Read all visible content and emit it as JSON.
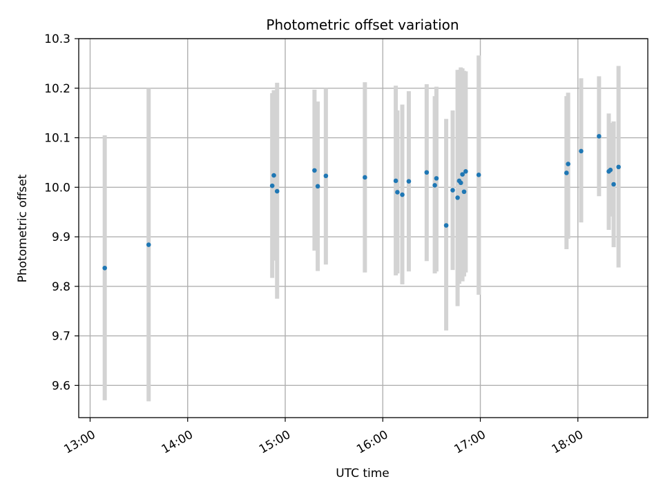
{
  "chart_data": {
    "type": "scatter",
    "title": "Photometric offset variation",
    "xlabel": "UTC time",
    "ylabel": "Photometric offset",
    "xlim": [
      "12:53",
      "18:43"
    ],
    "ylim": [
      9.535,
      10.3
    ],
    "x_ticks": [
      "13:00",
      "14:00",
      "15:00",
      "16:00",
      "17:00",
      "18:00"
    ],
    "y_ticks": [
      9.6,
      9.7,
      9.8,
      9.9,
      10.0,
      10.1,
      10.2,
      10.3
    ],
    "y_tick_labels": [
      "9.6",
      "9.7",
      "9.8",
      "9.9",
      "10.0",
      "10.1",
      "10.2",
      "10.3"
    ],
    "grid": true,
    "marker_color": "#1f77b4",
    "errorbar_color": "#d3d3d3",
    "points": [
      {
        "x": "13:09",
        "y": 9.837,
        "low": 9.57,
        "high": 10.105
      },
      {
        "x": "13:36",
        "y": 9.884,
        "low": 9.568,
        "high": 10.2
      },
      {
        "x": "14:52",
        "y": 10.003,
        "low": 9.817,
        "high": 10.19
      },
      {
        "x": "14:53",
        "y": 10.024,
        "low": 9.852,
        "high": 10.196
      },
      {
        "x": "14:55",
        "y": 9.992,
        "low": 9.775,
        "high": 10.211
      },
      {
        "x": "15:18",
        "y": 10.034,
        "low": 9.872,
        "high": 10.197
      },
      {
        "x": "15:20",
        "y": 10.002,
        "low": 9.831,
        "high": 10.173
      },
      {
        "x": "15:25",
        "y": 10.023,
        "low": 9.844,
        "high": 10.2
      },
      {
        "x": "15:49",
        "y": 10.02,
        "low": 9.828,
        "high": 10.212
      },
      {
        "x": "16:08",
        "y": 10.013,
        "low": 9.822,
        "high": 10.205
      },
      {
        "x": "16:09",
        "y": 9.99,
        "low": 9.826,
        "high": 10.155
      },
      {
        "x": "16:12",
        "y": 9.985,
        "low": 9.804,
        "high": 10.167
      },
      {
        "x": "16:16",
        "y": 10.012,
        "low": 9.83,
        "high": 10.194
      },
      {
        "x": "16:27",
        "y": 10.03,
        "low": 9.851,
        "high": 10.208
      },
      {
        "x": "16:32",
        "y": 10.004,
        "low": 9.826,
        "high": 10.184
      },
      {
        "x": "16:33",
        "y": 10.018,
        "low": 9.83,
        "high": 10.203
      },
      {
        "x": "16:39",
        "y": 9.923,
        "low": 9.711,
        "high": 10.138
      },
      {
        "x": "16:43",
        "y": 9.994,
        "low": 9.833,
        "high": 10.155
      },
      {
        "x": "16:46",
        "y": 9.979,
        "low": 9.76,
        "high": 10.237
      },
      {
        "x": "16:47",
        "y": 10.013,
        "low": 9.805,
        "high": 10.237
      },
      {
        "x": "16:48",
        "y": 10.009,
        "low": 9.813,
        "high": 10.242
      },
      {
        "x": "16:49",
        "y": 10.026,
        "low": 9.81,
        "high": 10.24
      },
      {
        "x": "16:50",
        "y": 9.991,
        "low": 9.82,
        "high": 10.235
      },
      {
        "x": "16:51",
        "y": 10.032,
        "low": 9.828,
        "high": 10.234
      },
      {
        "x": "16:59",
        "y": 10.025,
        "low": 9.783,
        "high": 10.266
      },
      {
        "x": "17:53",
        "y": 10.029,
        "low": 9.875,
        "high": 10.184
      },
      {
        "x": "17:54",
        "y": 10.047,
        "low": 9.896,
        "high": 10.191
      },
      {
        "x": "18:02",
        "y": 10.073,
        "low": 9.929,
        "high": 10.22
      },
      {
        "x": "18:13",
        "y": 10.103,
        "low": 9.982,
        "high": 10.224
      },
      {
        "x": "18:19",
        "y": 10.032,
        "low": 9.914,
        "high": 10.149
      },
      {
        "x": "18:20",
        "y": 10.035,
        "low": 9.941,
        "high": 10.13
      },
      {
        "x": "18:22",
        "y": 10.006,
        "low": 9.879,
        "high": 10.133
      },
      {
        "x": "18:25",
        "y": 10.041,
        "low": 9.838,
        "high": 10.245
      }
    ]
  }
}
